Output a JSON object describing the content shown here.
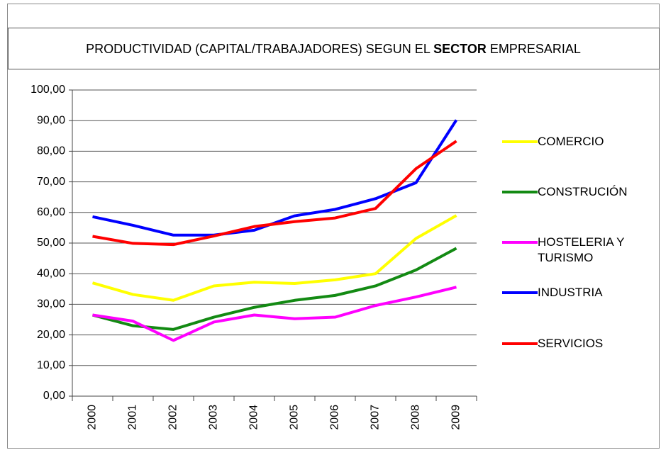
{
  "chart_data": {
    "type": "line",
    "title": [
      "PRODUCTIVIDAD (CAPITAL/TRABAJADORES) SEGUN EL",
      "SECTOR",
      "EMPRESARIAL"
    ],
    "categories": [
      "2000",
      "2001",
      "2002",
      "2003",
      "2004",
      "2005",
      "2006",
      "2007",
      "2008",
      "2009"
    ],
    "series": [
      {
        "name": "COMERCIO",
        "color": "#ffff00",
        "values": [
          37,
          33.2,
          31.3,
          36,
          37.2,
          36.8,
          38,
          40,
          51.5,
          59
        ]
      },
      {
        "name": "CONSTRUCIÓN",
        "color": "#138a13",
        "values": [
          26.5,
          23,
          21.8,
          25.8,
          29,
          31.3,
          32.9,
          36,
          41.2,
          48.3
        ]
      },
      {
        "name": "HOSTELERIA Y TURISMO",
        "color": "#ff00ff",
        "values": [
          26.5,
          24.5,
          18.2,
          24.2,
          26.5,
          25.3,
          25.8,
          29.6,
          32.4,
          35.6
        ]
      },
      {
        "name": "INDUSTRIA",
        "color": "#0000ff",
        "values": [
          58.6,
          55.8,
          52.6,
          52.6,
          54.2,
          58.9,
          61,
          64.5,
          69.7,
          90.2
        ]
      },
      {
        "name": "SERVICIOS",
        "color": "#ff0000",
        "values": [
          52.2,
          49.9,
          49.5,
          52.3,
          55.4,
          57,
          58.2,
          61.3,
          74.3,
          83.3
        ]
      }
    ],
    "ylim": [
      0,
      100
    ],
    "yticks": [
      {
        "value": 0,
        "label": "0,00"
      },
      {
        "value": 10,
        "label": "10,00"
      },
      {
        "value": 20,
        "label": "20,00"
      },
      {
        "value": 30,
        "label": "30,00"
      },
      {
        "value": 40,
        "label": "40,00"
      },
      {
        "value": 50,
        "label": "50,00"
      },
      {
        "value": 60,
        "label": "60,00"
      },
      {
        "value": 70,
        "label": "70,00"
      },
      {
        "value": 80,
        "label": "80,00"
      },
      {
        "value": 90,
        "label": "90,00"
      },
      {
        "value": 100,
        "label": "100,00"
      }
    ],
    "grid": true,
    "legend": "right"
  }
}
